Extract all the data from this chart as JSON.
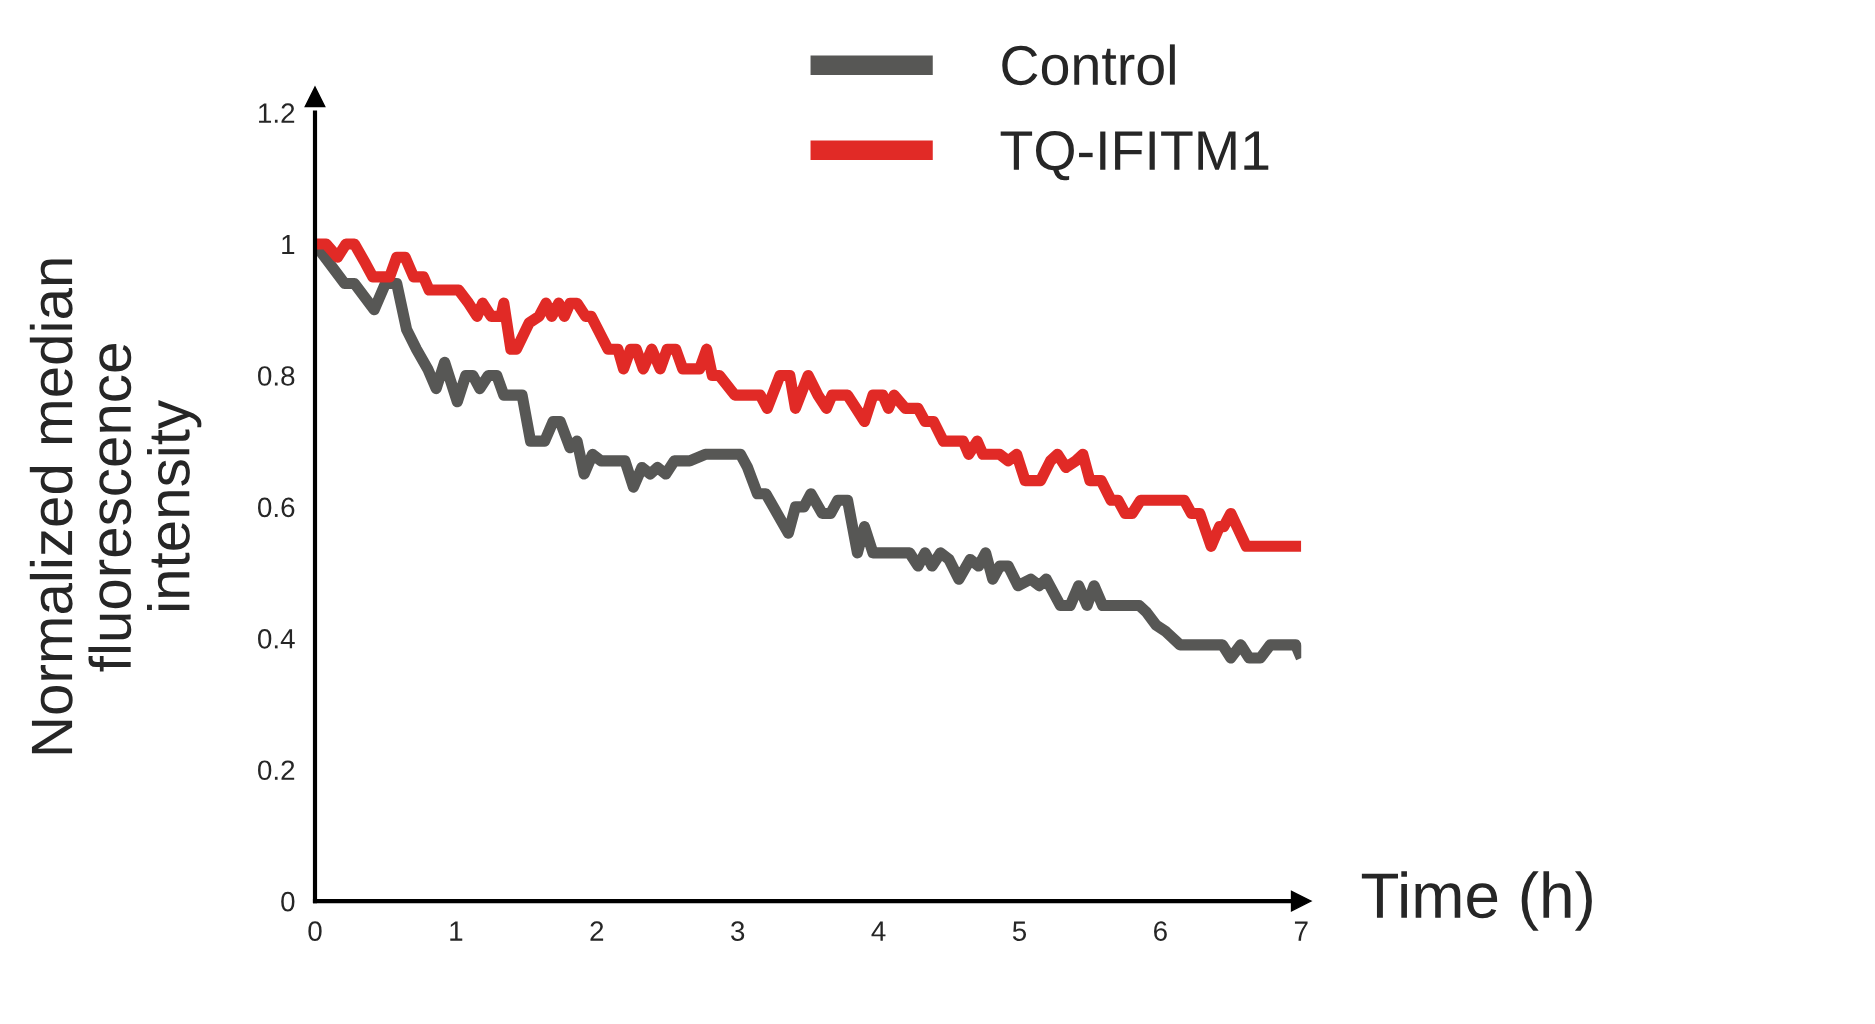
{
  "chart_data": {
    "type": "line",
    "xlabel": "Time (h)",
    "ylabel": "Normalized median\nfluorescence\nintensity",
    "xlim": [
      0,
      7
    ],
    "ylim": [
      0,
      1.2
    ],
    "xticks": [
      0,
      1,
      2,
      3,
      4,
      5,
      6,
      7
    ],
    "yticks": [
      0,
      0.2,
      0.4,
      0.6,
      0.8,
      1,
      1.2
    ],
    "legend": "top right",
    "grid": false,
    "marker": "none",
    "line_style": "solid",
    "series": [
      {
        "name": "Control",
        "color": "#575755",
        "x": [
          0,
          0.21,
          0.28,
          0.42,
          0.5,
          0.58,
          0.65,
          0.72,
          0.8,
          0.86,
          0.92,
          1.01,
          1.07,
          1.12,
          1.17,
          1.23,
          1.29,
          1.34,
          1.47,
          1.53,
          1.63,
          1.69,
          1.74,
          1.81,
          1.86,
          1.91,
          1.97,
          2.03,
          2.2,
          2.26,
          2.32,
          2.38,
          2.43,
          2.49,
          2.55,
          2.66,
          2.77,
          3.02,
          3.07,
          3.14,
          3.2,
          3.28,
          3.36,
          3.41,
          3.47,
          3.52,
          3.6,
          3.66,
          3.71,
          3.78,
          3.85,
          3.9,
          3.96,
          4.22,
          4.28,
          4.33,
          4.38,
          4.44,
          4.5,
          4.57,
          4.65,
          4.71,
          4.76,
          4.81,
          4.86,
          4.92,
          4.99,
          5.08,
          5.14,
          5.19,
          5.29,
          5.36,
          5.42,
          5.48,
          5.53,
          5.59,
          5.85,
          5.9,
          5.97,
          6.04,
          6.14,
          6.44,
          6.5,
          6.57,
          6.63,
          6.71,
          6.78,
          6.96,
          7.0
        ],
        "values": [
          1,
          0.94,
          0.94,
          0.9,
          0.94,
          0.94,
          0.87,
          0.84,
          0.81,
          0.78,
          0.82,
          0.76,
          0.8,
          0.8,
          0.78,
          0.8,
          0.8,
          0.77,
          0.77,
          0.7,
          0.7,
          0.73,
          0.73,
          0.69,
          0.7,
          0.65,
          0.68,
          0.67,
          0.67,
          0.63,
          0.66,
          0.65,
          0.66,
          0.65,
          0.67,
          0.67,
          0.68,
          0.68,
          0.66,
          0.62,
          0.62,
          0.59,
          0.56,
          0.6,
          0.6,
          0.62,
          0.59,
          0.59,
          0.61,
          0.61,
          0.53,
          0.57,
          0.53,
          0.53,
          0.51,
          0.53,
          0.51,
          0.53,
          0.52,
          0.49,
          0.52,
          0.51,
          0.53,
          0.49,
          0.51,
          0.51,
          0.48,
          0.49,
          0.48,
          0.49,
          0.45,
          0.45,
          0.48,
          0.45,
          0.48,
          0.45,
          0.45,
          0.44,
          0.42,
          0.41,
          0.39,
          0.39,
          0.37,
          0.39,
          0.37,
          0.37,
          0.39,
          0.39,
          0.37
        ]
      },
      {
        "name": "TQ-IFITM1",
        "color": "#e12a26",
        "x": [
          0,
          0.08,
          0.16,
          0.22,
          0.28,
          0.36,
          0.41,
          0.53,
          0.58,
          0.64,
          0.7,
          0.77,
          0.81,
          1.02,
          1.09,
          1.15,
          1.19,
          1.25,
          1.32,
          1.34,
          1.39,
          1.43,
          1.52,
          1.59,
          1.64,
          1.68,
          1.73,
          1.77,
          1.81,
          1.86,
          1.92,
          1.96,
          2.08,
          2.15,
          2.19,
          2.24,
          2.28,
          2.33,
          2.39,
          2.45,
          2.5,
          2.56,
          2.61,
          2.73,
          2.78,
          2.82,
          2.87,
          2.98,
          3.16,
          3.21,
          3.3,
          3.37,
          3.41,
          3.5,
          3.57,
          3.63,
          3.67,
          3.78,
          3.84,
          3.9,
          3.96,
          4.03,
          4.07,
          4.11,
          4.19,
          4.28,
          4.33,
          4.39,
          4.46,
          4.6,
          4.64,
          4.7,
          4.74,
          4.86,
          4.92,
          4.98,
          5.04,
          5.15,
          5.22,
          5.27,
          5.33,
          5.4,
          5.45,
          5.5,
          5.58,
          5.65,
          5.7,
          5.75,
          5.8,
          5.86,
          6.17,
          6.22,
          6.28,
          6.36,
          6.42,
          6.45,
          6.5,
          6.61,
          7.0
        ],
        "values": [
          1,
          1,
          0.98,
          1,
          1,
          0.97,
          0.95,
          0.95,
          0.98,
          0.98,
          0.95,
          0.95,
          0.93,
          0.93,
          0.91,
          0.89,
          0.91,
          0.89,
          0.89,
          0.91,
          0.84,
          0.84,
          0.88,
          0.89,
          0.91,
          0.89,
          0.91,
          0.89,
          0.91,
          0.91,
          0.89,
          0.89,
          0.84,
          0.84,
          0.81,
          0.84,
          0.84,
          0.81,
          0.84,
          0.81,
          0.84,
          0.84,
          0.81,
          0.81,
          0.84,
          0.8,
          0.8,
          0.77,
          0.77,
          0.75,
          0.8,
          0.8,
          0.75,
          0.8,
          0.77,
          0.75,
          0.77,
          0.77,
          0.75,
          0.73,
          0.77,
          0.77,
          0.75,
          0.77,
          0.75,
          0.75,
          0.73,
          0.73,
          0.7,
          0.7,
          0.68,
          0.7,
          0.68,
          0.68,
          0.67,
          0.68,
          0.64,
          0.64,
          0.67,
          0.68,
          0.66,
          0.67,
          0.68,
          0.64,
          0.64,
          0.61,
          0.61,
          0.59,
          0.59,
          0.61,
          0.61,
          0.59,
          0.59,
          0.54,
          0.57,
          0.57,
          0.59,
          0.54,
          0.54
        ]
      }
    ]
  }
}
